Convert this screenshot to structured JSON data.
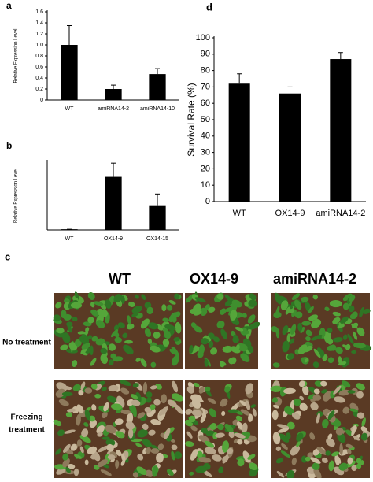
{
  "chart_data": [
    {
      "type": "bar",
      "panel_label": "a",
      "ylabel": "Relative Expression Level",
      "categories": [
        "WT",
        "amiRNA14-2",
        "amiRNA14-10"
      ],
      "series": [
        {
          "color": "#000000",
          "values": [
            1.0,
            0.2,
            0.47
          ],
          "errors": [
            0.35,
            0.07,
            0.1
          ]
        }
      ],
      "ylim": [
        0,
        1.6
      ],
      "yticks": [
        0,
        0.2,
        0.4,
        0.6,
        0.8,
        {
          "value": 1,
          "label": "1.0"
        },
        1.2,
        1.4,
        1.6
      ]
    },
    {
      "type": "bar",
      "panel_label": "b",
      "ylabel": "Relative Expression Level",
      "categories": [
        "WT",
        "OX14-9",
        "OX14-15"
      ],
      "series": [
        {
          "color": "#000000",
          "values": [
            2,
            155,
            72
          ],
          "errors": [
            0,
            40,
            33
          ]
        }
      ],
      "ylim": [
        0,
        200
      ]
    },
    {
      "type": "bar",
      "panel_label": "d",
      "ylabel": "Survival Rate (%)",
      "categories": [
        "WT",
        "OX14-9",
        "amiRNA14-2"
      ],
      "series": [
        {
          "color": "#000000",
          "values": [
            72,
            66,
            87
          ],
          "errors": [
            6,
            4,
            4
          ]
        }
      ],
      "ylim": [
        0,
        100
      ],
      "yticks": [
        0,
        10,
        20,
        30,
        40,
        50,
        60,
        70,
        80,
        90,
        100
      ]
    }
  ],
  "panel_c": {
    "label": "c",
    "columns": [
      "WT",
      "OX14-9",
      "amiRNA14-2"
    ],
    "row_labels": [
      [
        "No treatment"
      ],
      [
        "Freezing",
        "treatment"
      ]
    ]
  }
}
